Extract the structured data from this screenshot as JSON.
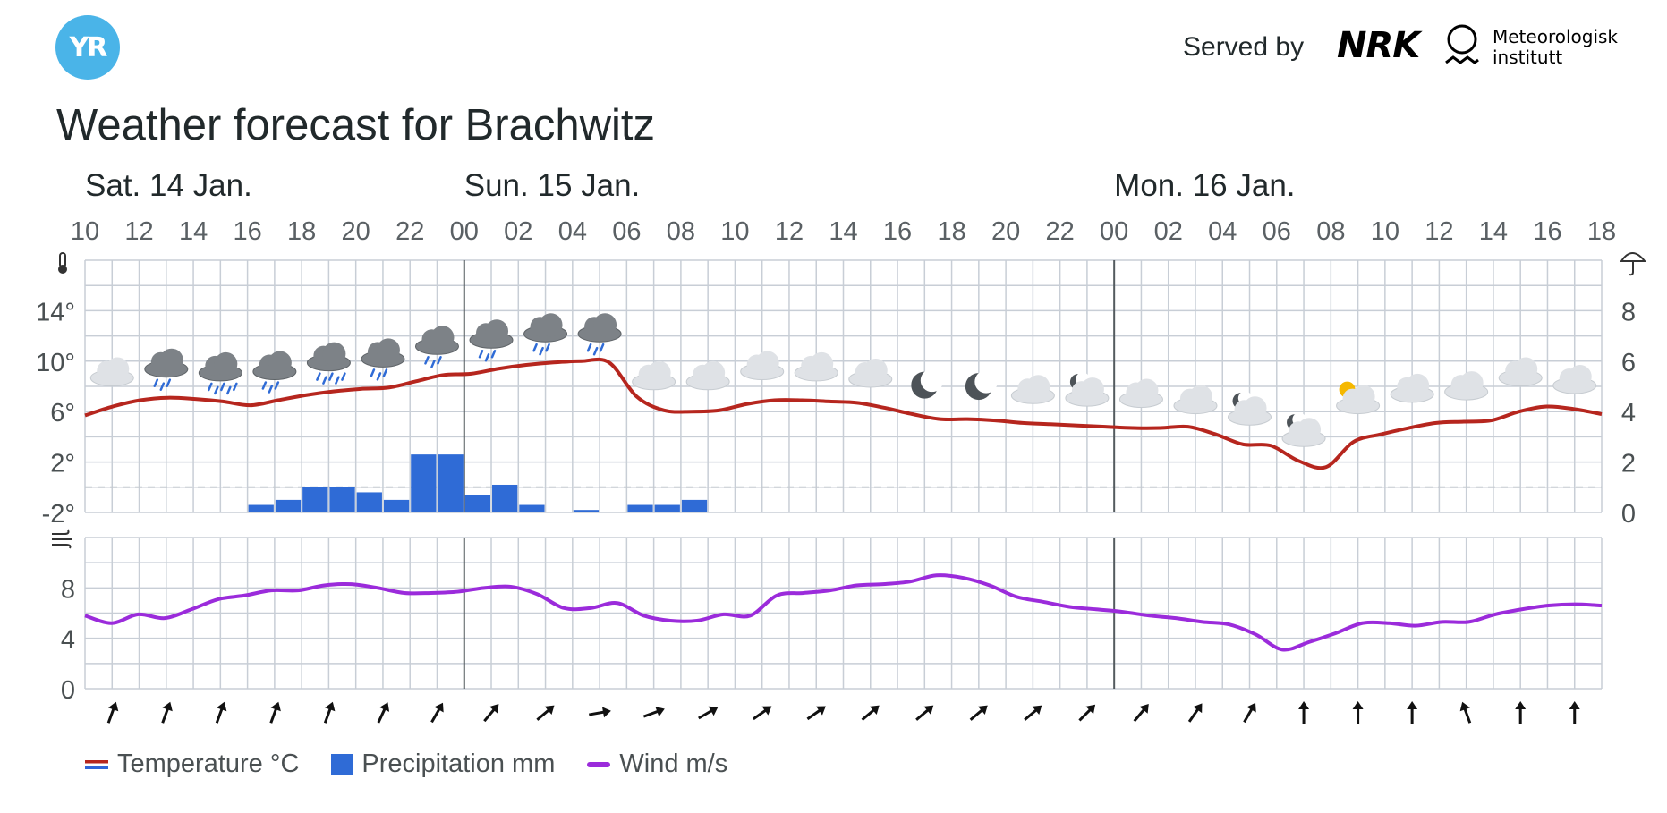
{
  "header": {
    "logo_text": "YR",
    "served_by": "Served by",
    "nrk_logo": "NRK",
    "met_name_line1": "Meteorologisk",
    "met_name_line2": "institutt"
  },
  "title": "Weather forecast for Brachwitz",
  "colors": {
    "temperature": "#b6261e",
    "precipitation": "#2f6bd6",
    "wind": "#9b2bdb",
    "grid": "#c8ced6",
    "day_separator": "#545b5f"
  },
  "legend": {
    "temperature": "Temperature °C",
    "precipitation": "Precipitation mm",
    "wind": "Wind m/s"
  },
  "chart_data": {
    "type": "line",
    "days": [
      {
        "label": "Sat. 14 Jan.",
        "start_hour_index": 0
      },
      {
        "label": "Sun. 15 Jan.",
        "start_hour_index": 14
      },
      {
        "label": "Mon. 16 Jan.",
        "start_hour_index": 38
      }
    ],
    "hour_ticks": [
      "10",
      "12",
      "14",
      "16",
      "18",
      "20",
      "22",
      "00",
      "02",
      "04",
      "06",
      "08",
      "10",
      "12",
      "14",
      "16",
      "18",
      "20",
      "22",
      "00",
      "02",
      "04",
      "06",
      "08",
      "10",
      "12",
      "14",
      "16",
      "18"
    ],
    "temperature_axis": {
      "ticks": [
        "14°",
        "10°",
        "6°",
        "2°",
        "-2°"
      ],
      "values": [
        14,
        10,
        6,
        2,
        -2
      ],
      "range": [
        -2,
        18
      ],
      "icon": "thermometer-icon"
    },
    "precipitation_axis": {
      "ticks": [
        "8",
        "6",
        "4",
        "2",
        "0"
      ],
      "values": [
        8,
        6,
        4,
        2,
        0
      ],
      "range": [
        0,
        10
      ],
      "icon": "umbrella-icon"
    },
    "wind_axis": {
      "ticks": [
        "8",
        "4",
        "0"
      ],
      "values": [
        8,
        4,
        0
      ],
      "range": [
        0,
        12
      ],
      "icon": "wind-icon"
    },
    "zero_line": "dashed at 0°",
    "temperature": [
      5.7,
      6.4,
      6.9,
      7.1,
      7.0,
      6.8,
      6.5,
      6.9,
      7.3,
      7.6,
      7.8,
      7.9,
      8.4,
      8.9,
      9.0,
      9.4,
      9.7,
      9.9,
      10.0,
      9.9,
      7.2,
      6.1,
      6.0,
      6.1,
      6.6,
      6.9,
      6.9,
      6.8,
      6.7,
      6.3,
      5.8,
      5.4,
      5.4,
      5.3,
      5.1,
      5.0,
      4.9,
      4.8,
      4.7,
      4.7,
      4.8,
      4.2,
      3.4,
      3.3,
      2.1,
      1.6,
      3.6,
      4.2,
      4.7,
      5.1,
      5.2,
      5.3,
      6.0,
      6.4,
      6.2,
      5.8
    ],
    "precipitation": [
      null,
      null,
      null,
      0.3,
      0.5,
      1.0,
      1.0,
      0.8,
      0.5,
      2.3,
      2.3,
      0.7,
      1.1,
      0.3,
      null,
      0.1,
      null,
      0.3,
      0.3,
      0.5
    ],
    "wind": [
      5.8,
      5.2,
      5.9,
      5.6,
      6.3,
      7.1,
      7.4,
      7.8,
      7.8,
      8.2,
      8.3,
      8.0,
      7.6,
      7.6,
      7.7,
      8.0,
      8.1,
      7.5,
      6.4,
      6.4,
      6.8,
      5.8,
      5.4,
      5.4,
      5.9,
      5.8,
      7.4,
      7.6,
      7.8,
      8.2,
      8.3,
      8.5,
      9.0,
      8.8,
      8.2,
      7.3,
      6.9,
      6.5,
      6.3,
      6.1,
      5.8,
      5.6,
      5.3,
      5.1,
      4.3,
      3.1,
      3.7,
      4.4,
      5.2,
      5.2,
      5.0,
      5.3,
      5.3,
      5.9,
      6.3,
      6.6,
      6.7,
      6.6
    ],
    "weather_symbols": [
      "cloud",
      "rain",
      "heavy-rain",
      "rain",
      "heavy-rain",
      "rain",
      "rain",
      "rain",
      "rain",
      "rain",
      "cloud",
      "cloud",
      "cloud",
      "cloud",
      "cloud",
      "moon",
      "moon",
      "cloud",
      "cloud-moon",
      "cloud",
      "cloud",
      "cloud-moon",
      "cloud-moon",
      "cloud-sun",
      "cloud",
      "cloud",
      "cloud",
      "cloud"
    ],
    "wind_directions_deg": [
      20,
      20,
      20,
      20,
      20,
      25,
      30,
      40,
      50,
      80,
      70,
      60,
      55,
      55,
      50,
      50,
      50,
      50,
      45,
      40,
      35,
      30,
      0,
      0,
      0,
      -20,
      0,
      0
    ]
  }
}
